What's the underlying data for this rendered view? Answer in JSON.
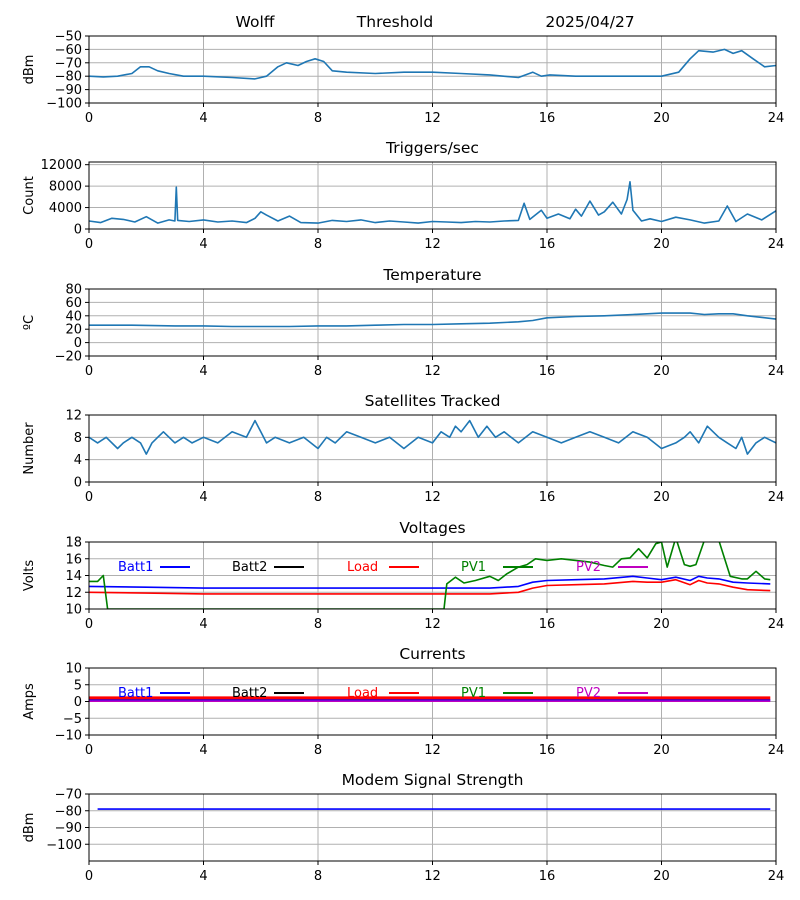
{
  "header": {
    "station": "Wolff",
    "threshold": "Threshold",
    "date": "2025/04/27"
  },
  "chart_data": [
    {
      "type": "line",
      "title": "",
      "ylabel": "dBm",
      "xlim": [
        0,
        24
      ],
      "ylim": [
        -100,
        -50
      ],
      "xticks": [
        0,
        4,
        8,
        12,
        16,
        20,
        24
      ],
      "yticks": [
        -100,
        -90,
        -80,
        -70,
        -60,
        -50
      ],
      "grid": true,
      "series": [
        {
          "color": "#1f77b4",
          "x": [
            0,
            0.5,
            1,
            1.5,
            1.8,
            2.1,
            2.4,
            2.8,
            3.3,
            4,
            5,
            5.8,
            6.2,
            6.6,
            6.9,
            7.3,
            7.6,
            7.9,
            8.2,
            8.5,
            9,
            10,
            11,
            12,
            13,
            14,
            15,
            15.5,
            15.8,
            16.1,
            17,
            18,
            19,
            20,
            20.6,
            21,
            21.3,
            21.8,
            22.2,
            22.5,
            22.8,
            23.2,
            23.6,
            24
          ],
          "y": [
            -80,
            -80.5,
            -80,
            -78,
            -73,
            -73,
            -76,
            -78,
            -80,
            -80,
            -81,
            -82,
            -80,
            -73,
            -70,
            -72,
            -69,
            -67,
            -69,
            -76,
            -77,
            -78,
            -77,
            -77,
            -78,
            -79,
            -81,
            -77,
            -80,
            -79,
            -80,
            -80,
            -80,
            -80,
            -77,
            -67,
            -61,
            -62,
            -60,
            -63,
            -61,
            -67,
            -73,
            -72
          ]
        }
      ]
    },
    {
      "type": "line",
      "title": "Triggers/sec",
      "ylabel": "Count",
      "xlim": [
        0,
        24
      ],
      "ylim": [
        0,
        12500
      ],
      "xticks": [
        0,
        4,
        8,
        12,
        16,
        20,
        24
      ],
      "yticks": [
        0,
        4000,
        8000,
        12000
      ],
      "grid": true,
      "series": [
        {
          "color": "#1f77b4",
          "x": [
            0,
            0.4,
            0.8,
            1.2,
            1.6,
            2,
            2.4,
            2.8,
            3.0,
            3.05,
            3.1,
            3.5,
            4,
            4.5,
            5,
            5.5,
            5.8,
            6,
            6.2,
            6.6,
            7,
            7.4,
            8,
            8.5,
            9,
            9.5,
            10,
            10.5,
            11,
            11.5,
            12,
            12.5,
            13,
            13.5,
            14,
            14.5,
            15,
            15.2,
            15.4,
            15.8,
            16,
            16.4,
            16.8,
            17,
            17.2,
            17.5,
            17.8,
            18,
            18.3,
            18.6,
            18.8,
            18.9,
            19,
            19.3,
            19.6,
            20,
            20.5,
            21,
            21.5,
            22,
            22.3,
            22.6,
            23,
            23.5,
            24
          ],
          "y": [
            1500,
            1200,
            2000,
            1800,
            1300,
            2300,
            1100,
            1700,
            1500,
            7800,
            1600,
            1400,
            1700,
            1300,
            1500,
            1200,
            2000,
            3200,
            2600,
            1500,
            2400,
            1200,
            1100,
            1600,
            1400,
            1700,
            1200,
            1500,
            1300,
            1100,
            1400,
            1300,
            1200,
            1400,
            1300,
            1500,
            1600,
            4800,
            1800,
            3500,
            2000,
            2800,
            1900,
            3700,
            2400,
            5200,
            2600,
            3200,
            5000,
            2800,
            5500,
            8800,
            3500,
            1500,
            1900,
            1400,
            2200,
            1700,
            1100,
            1500,
            4300,
            1400,
            2800,
            1700,
            3400
          ]
        }
      ]
    },
    {
      "type": "line",
      "title": "Temperature",
      "ylabel": "ºC",
      "xlim": [
        0,
        24
      ],
      "ylim": [
        -20,
        80
      ],
      "xticks": [
        0,
        4,
        8,
        12,
        16,
        20,
        24
      ],
      "yticks": [
        -20,
        0,
        20,
        40,
        60,
        80
      ],
      "grid": true,
      "series": [
        {
          "color": "#1f77b4",
          "x": [
            0,
            1.5,
            3,
            4,
            5,
            6,
            7,
            8,
            9,
            10,
            11,
            12,
            13,
            14,
            15,
            15.5,
            16,
            17,
            18,
            19,
            20,
            21,
            21.5,
            22,
            22.5,
            23,
            24
          ],
          "y": [
            26,
            26,
            25,
            25,
            24,
            24,
            24,
            25,
            25,
            26,
            27,
            27,
            28,
            29,
            31,
            33,
            37,
            39,
            40,
            42,
            44,
            44,
            42,
            43,
            43,
            40,
            35
          ]
        }
      ]
    },
    {
      "type": "line",
      "title": "Satellites Tracked",
      "ylabel": "Number",
      "xlim": [
        0,
        24
      ],
      "ylim": [
        0,
        12
      ],
      "xticks": [
        0,
        4,
        8,
        12,
        16,
        20,
        24
      ],
      "yticks": [
        0,
        4,
        8,
        12
      ],
      "grid": true,
      "series": [
        {
          "color": "#1f77b4",
          "x": [
            0,
            0.3,
            0.6,
            1,
            1.2,
            1.5,
            1.8,
            2,
            2.2,
            2.4,
            2.6,
            3,
            3.3,
            3.6,
            4,
            4.5,
            5,
            5.5,
            5.8,
            6,
            6.2,
            6.5,
            7,
            7.5,
            8,
            8.3,
            8.6,
            9,
            9.5,
            10,
            10.5,
            11,
            11.5,
            12,
            12.3,
            12.6,
            12.8,
            13,
            13.3,
            13.6,
            13.9,
            14.2,
            14.5,
            15,
            15.5,
            16,
            16.5,
            17,
            17.5,
            18,
            18.5,
            19,
            19.5,
            20,
            20.5,
            20.8,
            21,
            21.3,
            21.6,
            22,
            22.3,
            22.6,
            22.8,
            23,
            23.3,
            23.6,
            24
          ],
          "y": [
            8,
            7,
            8,
            6,
            7,
            8,
            7,
            5,
            7,
            8,
            9,
            7,
            8,
            7,
            8,
            7,
            9,
            8,
            11,
            9,
            7,
            8,
            7,
            8,
            6,
            8,
            7,
            9,
            8,
            7,
            8,
            6,
            8,
            7,
            9,
            8,
            10,
            9,
            11,
            8,
            10,
            8,
            9,
            7,
            9,
            8,
            7,
            8,
            9,
            8,
            7,
            9,
            8,
            6,
            7,
            8,
            9,
            7,
            10,
            8,
            7,
            6,
            8,
            5,
            7,
            8,
            7
          ]
        }
      ]
    },
    {
      "type": "line",
      "title": "Voltages",
      "ylabel": "Volts",
      "xlim": [
        0,
        24
      ],
      "ylim": [
        10,
        18
      ],
      "xticks": [
        0,
        4,
        8,
        12,
        16,
        20,
        24
      ],
      "yticks": [
        10,
        12,
        14,
        16,
        18
      ],
      "grid": true,
      "legend": [
        "Batt1",
        "Batt2",
        "Load",
        "PV1",
        "PV2"
      ],
      "series": [
        {
          "name": "Batt1",
          "color": "#0000ff",
          "x": [
            0,
            2,
            4,
            6,
            8,
            10,
            12,
            13,
            14,
            15,
            15.5,
            16,
            17,
            18,
            19,
            19.5,
            20,
            20.5,
            21,
            21.3,
            21.6,
            22,
            22.5,
            23,
            23.8
          ],
          "y": [
            12.7,
            12.6,
            12.5,
            12.5,
            12.5,
            12.5,
            12.5,
            12.5,
            12.5,
            12.7,
            13.2,
            13.4,
            13.5,
            13.6,
            13.9,
            13.7,
            13.5,
            13.8,
            13.4,
            13.9,
            13.7,
            13.6,
            13.2,
            13.1,
            13.0
          ]
        },
        {
          "name": "Load",
          "color": "#ff0000",
          "x": [
            0,
            2,
            4,
            6,
            8,
            10,
            12,
            13,
            14,
            15,
            15.5,
            16,
            17,
            18,
            19,
            19.5,
            20,
            20.5,
            21,
            21.3,
            21.6,
            22,
            22.5,
            23,
            23.8
          ],
          "y": [
            12.0,
            11.9,
            11.8,
            11.8,
            11.8,
            11.8,
            11.8,
            11.8,
            11.8,
            12.0,
            12.5,
            12.8,
            12.9,
            13.0,
            13.3,
            13.2,
            13.2,
            13.5,
            12.9,
            13.4,
            13.1,
            13.0,
            12.6,
            12.3,
            12.2
          ]
        },
        {
          "name": "PV1",
          "color": "#008000",
          "x": [
            0,
            0.3,
            0.5,
            0.65,
            12.4,
            12.5,
            12.8,
            13.1,
            13.5,
            14,
            14.3,
            14.6,
            15,
            15.3,
            15.6,
            16,
            16.5,
            17,
            17.5,
            18,
            18.3,
            18.6,
            18.9,
            19.2,
            19.5,
            19.8,
            20,
            20.2,
            20.5,
            20.8,
            21,
            21.2,
            21.5,
            21.8,
            22,
            22.4,
            22.8,
            23,
            23.3,
            23.6,
            23.8
          ],
          "y": [
            13.3,
            13.3,
            14.0,
            10.0,
            10.0,
            13.0,
            13.8,
            13.1,
            13.4,
            13.9,
            13.4,
            14.2,
            15.0,
            15.3,
            16.0,
            15.8,
            16.0,
            15.8,
            15.6,
            15.2,
            15.0,
            16.0,
            16.1,
            17.2,
            16.1,
            17.8,
            18.0,
            15.0,
            18.5,
            15.3,
            15.1,
            15.3,
            18.2,
            18.2,
            18.2,
            13.9,
            13.6,
            13.6,
            14.5,
            13.6,
            13.5
          ]
        }
      ]
    },
    {
      "type": "line",
      "title": "Currents",
      "ylabel": "Amps",
      "xlim": [
        0,
        24
      ],
      "ylim": [
        -10,
        10
      ],
      "xticks": [
        0,
        4,
        8,
        12,
        16,
        20,
        24
      ],
      "yticks": [
        -10,
        -5,
        0,
        5,
        10
      ],
      "grid": true,
      "legend": [
        "Batt1",
        "Batt2",
        "Load",
        "PV1",
        "PV2"
      ],
      "series": [
        {
          "name": "Load",
          "color": "#ff0000",
          "x": [
            0,
            4,
            8,
            12,
            16,
            20,
            23.8
          ],
          "y": [
            1.0,
            1.0,
            1.0,
            1.0,
            1.0,
            1.0,
            1.0
          ]
        },
        {
          "name": "Batt1",
          "color": "#0000ff",
          "x": [
            0,
            4,
            8,
            12,
            16,
            20,
            23.8
          ],
          "y": [
            0.4,
            0.4,
            0.4,
            0.4,
            0.4,
            0.4,
            0.4
          ]
        },
        {
          "name": "PV2",
          "color": "#bf00bf",
          "x": [
            0,
            4,
            8,
            12,
            16,
            20,
            23.8
          ],
          "y": [
            0.1,
            0.1,
            0.1,
            0.1,
            0.1,
            0.1,
            0.1
          ]
        }
      ]
    },
    {
      "type": "line",
      "title": "Modem Signal Strength",
      "ylabel": "dBm",
      "xlim": [
        0,
        24
      ],
      "ylim": [
        -110,
        -70
      ],
      "xticks": [
        0,
        4,
        8,
        12,
        16,
        20,
        24
      ],
      "yticks": [
        -100,
        -90,
        -80,
        -70
      ],
      "grid": true,
      "series": [
        {
          "color": "#0000ff",
          "x": [
            0.3,
            4,
            8,
            12,
            16,
            20,
            23.8
          ],
          "y": [
            -79,
            -79,
            -79,
            -79,
            -79,
            -79,
            -79
          ]
        }
      ]
    }
  ],
  "legend_colors": {
    "Batt1": "#0000ff",
    "Batt2": "#000000",
    "Load": "#ff0000",
    "PV1": "#008000",
    "PV2": "#bf00bf"
  }
}
